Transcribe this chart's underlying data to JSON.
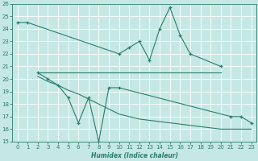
{
  "line1_x": [
    0,
    1,
    10,
    11,
    12,
    13,
    14,
    15,
    16,
    17,
    20
  ],
  "line1_y": [
    24.5,
    24.5,
    22.0,
    22.5,
    23.0,
    21.5,
    24.0,
    25.7,
    23.5,
    22.0,
    21.0
  ],
  "line2_x": [
    2,
    20
  ],
  "line2_y": [
    20.5,
    20.5
  ],
  "line3_x": [
    2,
    3,
    4,
    5,
    6,
    7,
    8,
    9,
    10,
    21,
    22,
    23
  ],
  "line3_y": [
    20.5,
    20.0,
    19.5,
    18.5,
    16.5,
    18.5,
    15.0,
    19.3,
    19.3,
    17.0,
    17.0,
    16.5
  ],
  "line4_x": [
    2,
    3,
    4,
    5,
    6,
    7,
    8,
    9,
    10,
    11,
    12,
    13,
    14,
    15,
    16,
    17,
    18,
    19,
    20,
    21,
    22,
    23
  ],
  "line4_y": [
    20.2,
    19.8,
    19.5,
    19.1,
    18.8,
    18.4,
    18.0,
    17.6,
    17.2,
    17.0,
    16.8,
    16.7,
    16.6,
    16.5,
    16.4,
    16.3,
    16.2,
    16.1,
    16.0,
    16.0,
    16.0,
    16.0
  ],
  "color": "#2a7d6a",
  "bg_color": "#c5e8e5",
  "grid_color": "#b0d8d5",
  "xlabel": "Humidex (Indice chaleur)",
  "ylim": [
    15,
    26
  ],
  "xlim": [
    -0.5,
    23.5
  ],
  "yticks": [
    15,
    16,
    17,
    18,
    19,
    20,
    21,
    22,
    23,
    24,
    25,
    26
  ],
  "xticks": [
    0,
    1,
    2,
    3,
    4,
    5,
    6,
    7,
    8,
    9,
    10,
    11,
    12,
    13,
    14,
    15,
    16,
    17,
    18,
    19,
    20,
    21,
    22,
    23
  ]
}
